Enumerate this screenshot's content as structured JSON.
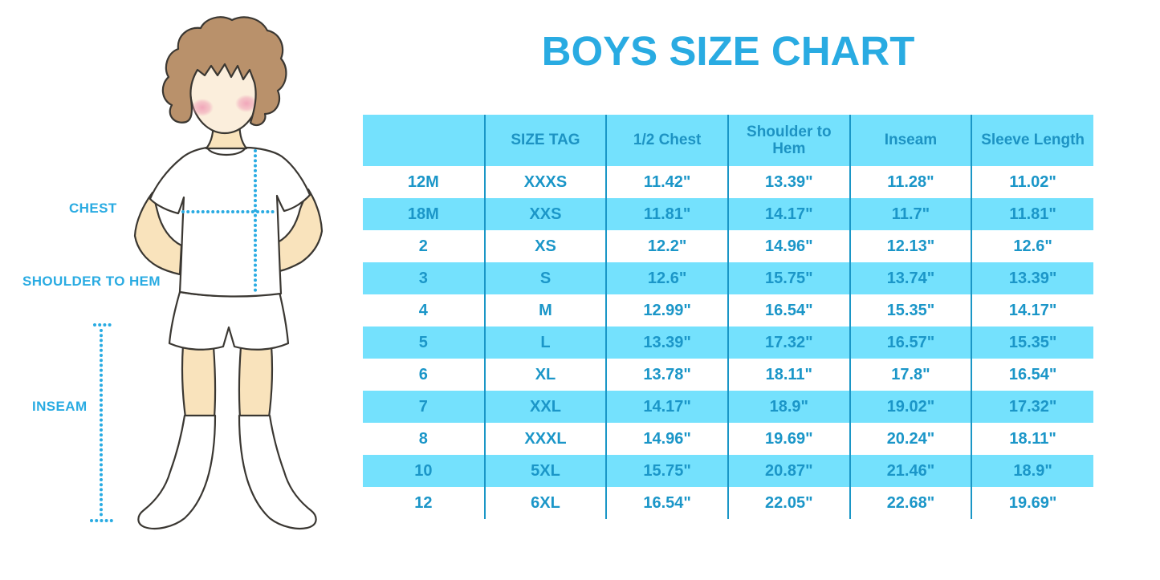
{
  "title": "BOYS SIZE CHART",
  "figure_labels": {
    "chest": "CHEST",
    "shoulder_to_hem": "SHOULDER TO HEM",
    "inseam": "INSEAM"
  },
  "chart_data": {
    "type": "table",
    "title": "BOYS SIZE CHART",
    "columns": [
      "",
      "SIZE TAG",
      "1/2 Chest",
      "Shoulder to Hem",
      "Inseam",
      "Sleeve Length"
    ],
    "rows": [
      [
        "12M",
        "XXXS",
        "11.42\"",
        "13.39\"",
        "11.28\"",
        "11.02\""
      ],
      [
        "18M",
        "XXS",
        "11.81\"",
        "14.17\"",
        "11.7\"",
        "11.81\""
      ],
      [
        "2",
        "XS",
        "12.2\"",
        "14.96\"",
        "12.13\"",
        "12.6\""
      ],
      [
        "3",
        "S",
        "12.6\"",
        "15.75\"",
        "13.74\"",
        "13.39\""
      ],
      [
        "4",
        "M",
        "12.99\"",
        "16.54\"",
        "15.35\"",
        "14.17\""
      ],
      [
        "5",
        "L",
        "13.39\"",
        "17.32\"",
        "16.57\"",
        "15.35\""
      ],
      [
        "6",
        "XL",
        "13.78\"",
        "18.11\"",
        "17.8\"",
        "16.54\""
      ],
      [
        "7",
        "XXL",
        "14.17\"",
        "18.9\"",
        "19.02\"",
        "17.32\""
      ],
      [
        "8",
        "XXXL",
        "14.96\"",
        "19.69\"",
        "20.24\"",
        "18.11\""
      ],
      [
        "10",
        "5XL",
        "15.75\"",
        "20.87\"",
        "21.46\"",
        "18.9\""
      ],
      [
        "12",
        "6XL",
        "16.54\"",
        "22.05\"",
        "22.68\"",
        "19.69\""
      ]
    ],
    "row_stripe_pattern": "header blue, then alternating white / light-blue starting white",
    "legend_position": "none",
    "grid": "vertical column dividers only"
  },
  "colors": {
    "accent_blue": "#29ABE2",
    "table_fill_light_blue": "#74E1FD",
    "table_text_blue": "#1B96C8",
    "divider_blue": "#1A96C6",
    "skin": "#F9E3BC",
    "face_skin": "#FBEEDC",
    "hair_brown": "#B9916B",
    "blush_pink": "#F0A3B8",
    "outline": "#3A3732",
    "background": "#FFFFFF"
  }
}
